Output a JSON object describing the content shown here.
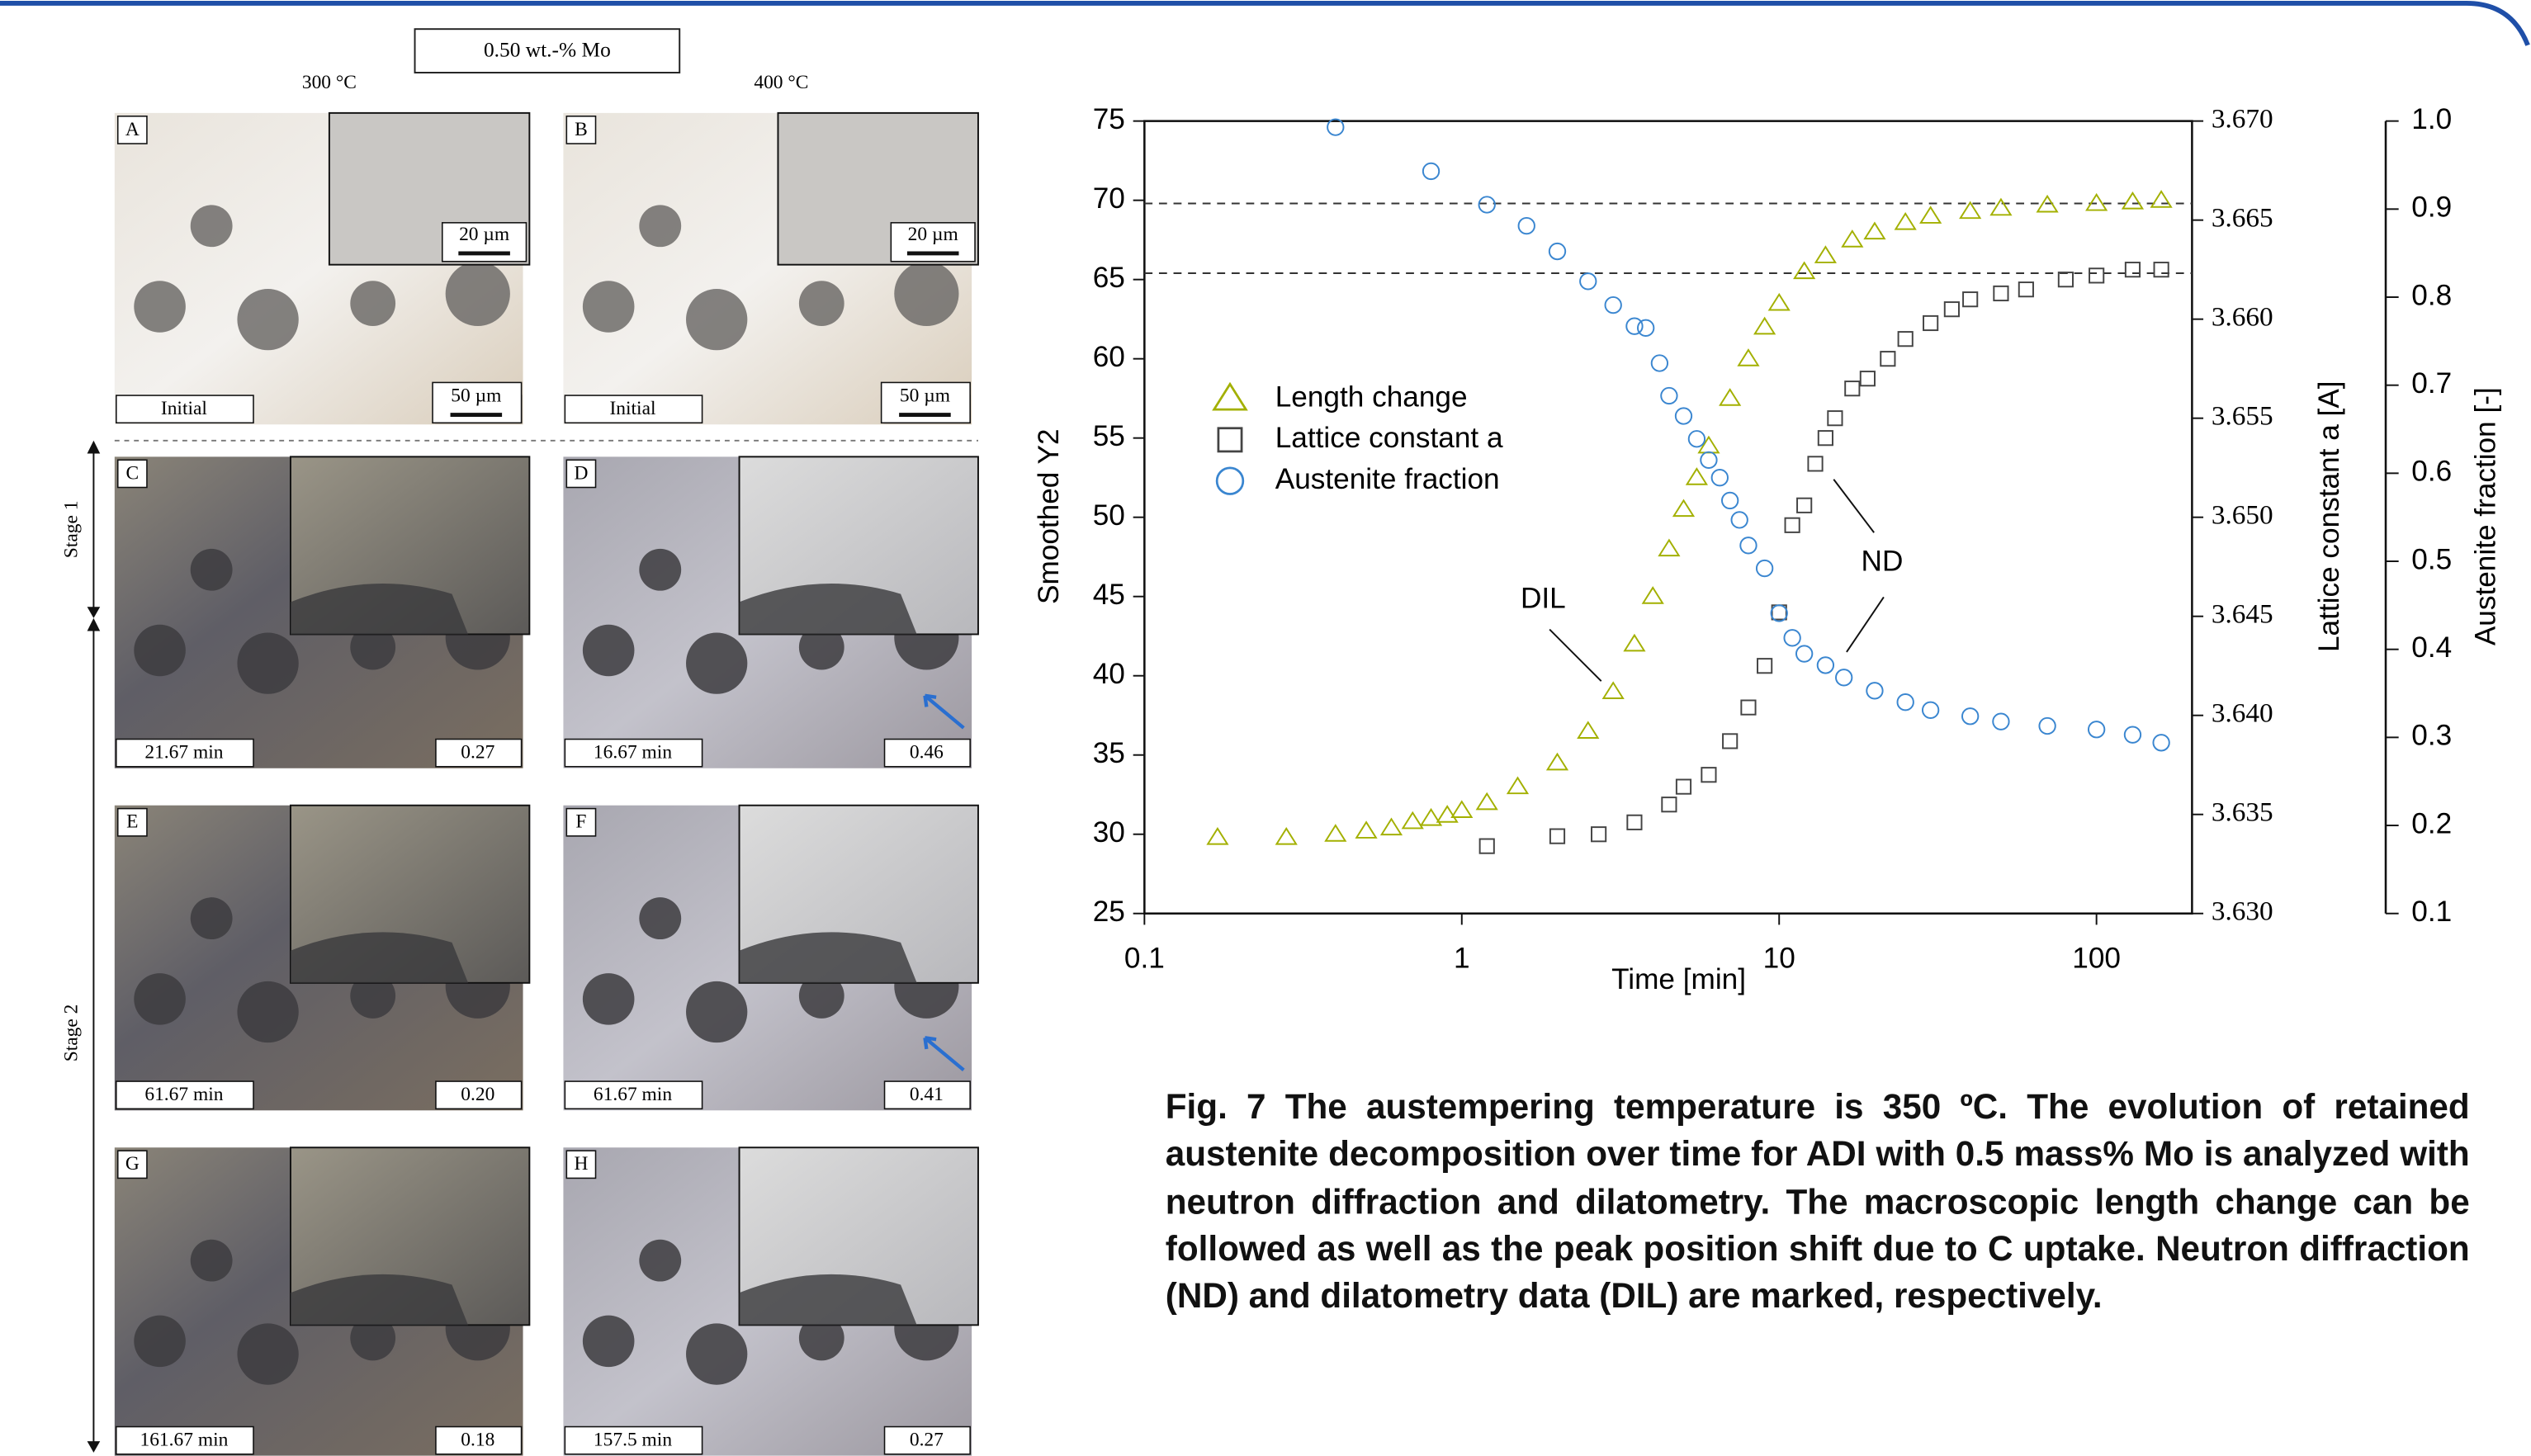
{
  "micrographs": {
    "composition": "0.50 wt.-% Mo",
    "columns": [
      "300 °C",
      "400 °C"
    ],
    "stages": [
      "Stage 1",
      "Stage 2"
    ],
    "panels": [
      {
        "letter": "A",
        "label": "Initial",
        "scale": "50 µm",
        "inset_scale": "20 µm"
      },
      {
        "letter": "B",
        "label": "Initial",
        "scale": "50 µm",
        "inset_scale": "20 µm"
      },
      {
        "letter": "C",
        "label": "21.67 min",
        "fraction": "0.27"
      },
      {
        "letter": "D",
        "label": "16.67 min",
        "fraction": "0.46"
      },
      {
        "letter": "E",
        "label": "61.67 min",
        "fraction": "0.20"
      },
      {
        "letter": "F",
        "label": "61.67 min",
        "fraction": "0.41"
      },
      {
        "letter": "G",
        "label": "161.67 min",
        "fraction": "0.18"
      },
      {
        "letter": "H",
        "label": "157.5 min",
        "fraction": "0.27"
      }
    ]
  },
  "chart_data": {
    "type": "scatter",
    "x_label": "Time [min]",
    "y_label": "Smoothed Y2",
    "y2_label": "Lattice constant a [A]",
    "y3_label": "Austenite fraction [-]",
    "x_scale": "log",
    "xlim": [
      0.1,
      200
    ],
    "xticks": [
      0.1,
      1,
      10,
      100
    ],
    "ylim": [
      25,
      75
    ],
    "yticks": [
      25,
      30,
      35,
      40,
      45,
      50,
      55,
      60,
      65,
      70,
      75
    ],
    "y2lim": [
      3.63,
      3.67
    ],
    "y2ticks": [
      {
        "value": 3.63,
        "label": "3.630"
      },
      3.635,
      {
        "value": 3.64,
        "label": "3.640"
      },
      3.645,
      {
        "value": 3.65,
        "label": "3.650"
      },
      3.655,
      {
        "value": 3.66,
        "label": "3.660"
      },
      3.665,
      {
        "value": 3.67,
        "label": "3.670"
      }
    ],
    "y3lim": [
      0.1,
      1.0
    ],
    "y3ticks": [
      0.1,
      0.2,
      0.3,
      0.4,
      0.5,
      0.6,
      0.7,
      0.8,
      0.9,
      {
        "value": 1.0,
        "label": "1.0"
      }
    ],
    "hlines": [
      69.8,
      65.4
    ],
    "legend": "upper left",
    "annotations": [
      {
        "text": "DIL"
      },
      {
        "text": "ND"
      }
    ],
    "series": [
      {
        "name": "Length change",
        "color": "#a3b000",
        "marker": "triangle",
        "axis": "y",
        "x": [
          0.17,
          0.28,
          0.4,
          0.5,
          0.6,
          0.7,
          0.8,
          0.9,
          1.0,
          1.2,
          1.5,
          2,
          2.5,
          3,
          3.5,
          4,
          4.5,
          5,
          5.5,
          6,
          7,
          8,
          9,
          10,
          12,
          14,
          17,
          20,
          25,
          30,
          40,
          50,
          70,
          100,
          130,
          160
        ],
        "values": [
          29.8,
          29.8,
          30,
          30.2,
          30.4,
          30.8,
          31,
          31.2,
          31.5,
          32,
          33,
          34.5,
          36.5,
          39,
          42,
          45,
          48,
          50.5,
          52.5,
          54.5,
          57.5,
          60,
          62,
          63.5,
          65.5,
          66.5,
          67.5,
          68,
          68.6,
          69,
          69.3,
          69.5,
          69.7,
          69.8,
          69.9,
          70
        ]
      },
      {
        "name": "Lattice constant a",
        "color": "#444444",
        "marker": "square",
        "axis": "y2",
        "x": [
          1.2,
          2,
          2.7,
          3.5,
          4.5,
          5,
          6,
          7,
          8,
          9,
          10,
          11,
          12,
          13,
          14,
          15,
          17,
          19,
          22,
          25,
          30,
          35,
          40,
          50,
          60,
          80,
          100,
          130,
          160
        ],
        "values": [
          3.6334,
          3.6339,
          3.634,
          3.6346,
          3.6355,
          3.6364,
          3.637,
          3.6387,
          3.6404,
          3.6425,
          3.6452,
          3.6496,
          3.6506,
          3.6527,
          3.654,
          3.655,
          3.6565,
          3.657,
          3.658,
          3.659,
          3.6598,
          3.6605,
          3.661,
          3.6613,
          3.6615,
          3.662,
          3.6622,
          3.6625,
          3.6625
        ]
      },
      {
        "name": "Austenite fraction",
        "color": "#3a86d0",
        "marker": "circle",
        "axis": "y3",
        "x": [
          0.4,
          0.8,
          1.2,
          1.6,
          2,
          2.5,
          3,
          3.5,
          3.8,
          4.2,
          4.5,
          5,
          5.5,
          6,
          6.5,
          7,
          7.5,
          8,
          9,
          10,
          11,
          12,
          14,
          16,
          20,
          25,
          30,
          40,
          50,
          70,
          100,
          130,
          160
        ],
        "values": [
          0.993,
          0.943,
          0.905,
          0.881,
          0.852,
          0.818,
          0.791,
          0.767,
          0.765,
          0.725,
          0.688,
          0.665,
          0.639,
          0.615,
          0.595,
          0.569,
          0.547,
          0.518,
          0.492,
          0.441,
          0.413,
          0.395,
          0.382,
          0.368,
          0.353,
          0.34,
          0.331,
          0.324,
          0.318,
          0.313,
          0.309,
          0.303,
          0.294
        ]
      }
    ]
  },
  "caption": "Fig. 7 The austempering temperature is 350 ºC. The evolution of retained austenite decomposition over time for ADI with 0.5 mass% Mo is analyzed with neutron diffraction and dilatometry. The macroscopic length change can be followed as well as the peak position shift due to C uptake. Neutron diffraction (ND) and dilatometry data (DIL) are marked, respectively."
}
